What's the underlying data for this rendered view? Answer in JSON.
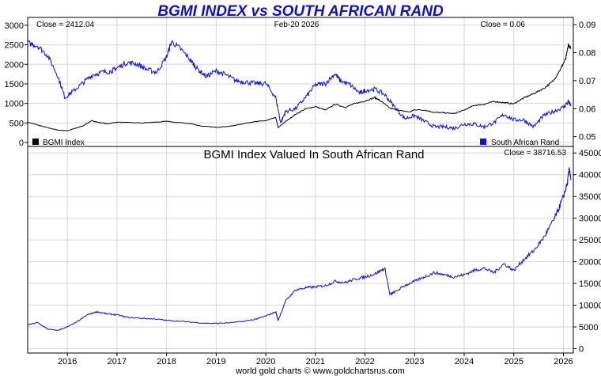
{
  "chart_data": [
    {
      "type": "line",
      "title": "BGMI INDEX vs SOUTH AFRICAN RAND",
      "date_label": "Feb-20  2026",
      "left_close_label": "Close = 2412.04",
      "right_close_label": "Close = 0.06",
      "x_ticks": [
        "2016",
        "2017",
        "2018",
        "2019",
        "2020",
        "2021",
        "2022",
        "2023",
        "2024",
        "2025",
        "2026"
      ],
      "xlim": [
        2015.2,
        2026.2
      ],
      "left_axis": {
        "ylim": [
          -100,
          3200
        ],
        "ticks": [
          "0",
          "500",
          "1000",
          "1500",
          "2000",
          "2500",
          "3000"
        ]
      },
      "right_axis": {
        "ylim": [
          0.0465,
          0.0926
        ],
        "ticks": [
          "0.05",
          "0.06",
          "0.07",
          "0.08",
          "0.09"
        ]
      },
      "series": [
        {
          "name": "BGMI Index",
          "axis": "left",
          "color": "#000000",
          "x": [
            2015.2,
            2015.4,
            2015.6,
            2015.8,
            2016.0,
            2016.15,
            2016.3,
            2016.5,
            2016.6,
            2016.8,
            2017.0,
            2017.5,
            2018.0,
            2018.5,
            2018.7,
            2019.0,
            2019.3,
            2019.5,
            2019.7,
            2020.0,
            2020.2,
            2020.25,
            2020.4,
            2020.6,
            2020.8,
            2021.0,
            2021.2,
            2021.4,
            2021.6,
            2021.8,
            2022.0,
            2022.2,
            2022.3,
            2022.5,
            2022.7,
            2022.9,
            2023.0,
            2023.2,
            2023.4,
            2023.6,
            2023.8,
            2024.0,
            2024.2,
            2024.4,
            2024.6,
            2024.8,
            2025.0,
            2025.2,
            2025.4,
            2025.6,
            2025.8,
            2025.95,
            2026.05,
            2026.1,
            2026.15
          ],
          "values": [
            520,
            450,
            380,
            320,
            300,
            360,
            420,
            560,
            520,
            480,
            520,
            500,
            540,
            480,
            420,
            390,
            420,
            470,
            520,
            560,
            640,
            380,
            540,
            720,
            860,
            920,
            830,
            980,
            900,
            1000,
            1060,
            1150,
            1080,
            880,
            820,
            780,
            840,
            830,
            770,
            760,
            740,
            830,
            950,
            980,
            1050,
            1020,
            990,
            1140,
            1250,
            1380,
            1580,
            1900,
            2150,
            2500,
            2412
          ]
        },
        {
          "name": "South African Rand",
          "axis": "right",
          "color": "#1010d8",
          "x": [
            2015.2,
            2015.4,
            2015.6,
            2015.8,
            2015.95,
            2016.1,
            2016.3,
            2016.5,
            2016.7,
            2016.9,
            2017.0,
            2017.2,
            2017.4,
            2017.6,
            2017.8,
            2018.0,
            2018.1,
            2018.3,
            2018.5,
            2018.6,
            2018.8,
            2019.0,
            2019.2,
            2019.4,
            2019.6,
            2019.8,
            2020.0,
            2020.2,
            2020.3,
            2020.4,
            2020.6,
            2020.8,
            2021.0,
            2021.2,
            2021.4,
            2021.5,
            2021.7,
            2021.9,
            2022.0,
            2022.2,
            2022.4,
            2022.6,
            2022.8,
            2023.0,
            2023.2,
            2023.4,
            2023.6,
            2023.8,
            2024.0,
            2024.2,
            2024.4,
            2024.6,
            2024.8,
            2025.0,
            2025.2,
            2025.4,
            2025.6,
            2025.8,
            2026.0,
            2026.1,
            2026.15
          ],
          "values": [
            0.0835,
            0.0825,
            0.079,
            0.072,
            0.064,
            0.066,
            0.069,
            0.072,
            0.073,
            0.0735,
            0.0745,
            0.0765,
            0.076,
            0.074,
            0.073,
            0.0785,
            0.084,
            0.081,
            0.077,
            0.0745,
            0.0715,
            0.0735,
            0.072,
            0.07,
            0.0695,
            0.069,
            0.069,
            0.064,
            0.055,
            0.059,
            0.06,
            0.064,
            0.0685,
            0.069,
            0.0725,
            0.07,
            0.0685,
            0.0655,
            0.0665,
            0.067,
            0.065,
            0.0605,
            0.0565,
            0.0575,
            0.0555,
            0.0535,
            0.0535,
            0.053,
            0.0545,
            0.0545,
            0.0535,
            0.055,
            0.058,
            0.056,
            0.056,
            0.0535,
            0.0575,
            0.059,
            0.0605,
            0.0625,
            0.061
          ]
        }
      ],
      "legend": [
        {
          "label": "BGMI Index",
          "color": "#000000",
          "position": "bottom-left"
        },
        {
          "label": "South African Rand",
          "color": "#1010d8",
          "position": "bottom-right"
        }
      ]
    },
    {
      "type": "line",
      "title": "BGMI Index Valued In South African Rand",
      "close_label": "Close = 38716.53",
      "x_ticks": [
        "2016",
        "2017",
        "2018",
        "2019",
        "2020",
        "2021",
        "2022",
        "2023",
        "2024",
        "2025",
        "2026"
      ],
      "xlim": [
        2015.2,
        2026.2
      ],
      "right_axis": {
        "ylim": [
          -1000,
          46500
        ],
        "ticks": [
          "0",
          "5000",
          "10000",
          "15000",
          "20000",
          "25000",
          "30000",
          "35000",
          "40000",
          "45000"
        ]
      },
      "series": [
        {
          "name": "BGMI Index Valued In South African Rand",
          "axis": "right",
          "color": "#1010d8",
          "x": [
            2015.2,
            2015.4,
            2015.6,
            2015.8,
            2016.0,
            2016.2,
            2016.4,
            2016.6,
            2016.8,
            2017.0,
            2017.2,
            2017.5,
            2017.8,
            2018.0,
            2018.3,
            2018.6,
            2018.9,
            2019.2,
            2019.5,
            2019.8,
            2020.0,
            2020.2,
            2020.25,
            2020.4,
            2020.6,
            2020.8,
            2021.0,
            2021.2,
            2021.4,
            2021.6,
            2021.8,
            2022.0,
            2022.2,
            2022.4,
            2022.5,
            2022.6,
            2022.8,
            2023.0,
            2023.2,
            2023.4,
            2023.6,
            2023.8,
            2024.0,
            2024.2,
            2024.4,
            2024.6,
            2024.8,
            2025.0,
            2025.2,
            2025.4,
            2025.6,
            2025.8,
            2025.9,
            2026.0,
            2026.08,
            2026.12,
            2026.15
          ],
          "values": [
            5500,
            6000,
            4500,
            4200,
            5000,
            6200,
            7800,
            8500,
            8000,
            7800,
            7200,
            7000,
            6800,
            6500,
            6300,
            6000,
            5800,
            5900,
            6200,
            6800,
            7500,
            8500,
            6500,
            11000,
            13500,
            14000,
            14200,
            14500,
            15500,
            15200,
            16000,
            16500,
            17200,
            18500,
            12500,
            13000,
            14500,
            15500,
            16500,
            17500,
            17000,
            16500,
            17000,
            18000,
            18500,
            17500,
            19500,
            18000,
            20500,
            22500,
            25500,
            29500,
            32000,
            35000,
            38000,
            41500,
            38716
          ]
        }
      ]
    }
  ],
  "footer": "world gold charts © www.goldchartsrus.com"
}
